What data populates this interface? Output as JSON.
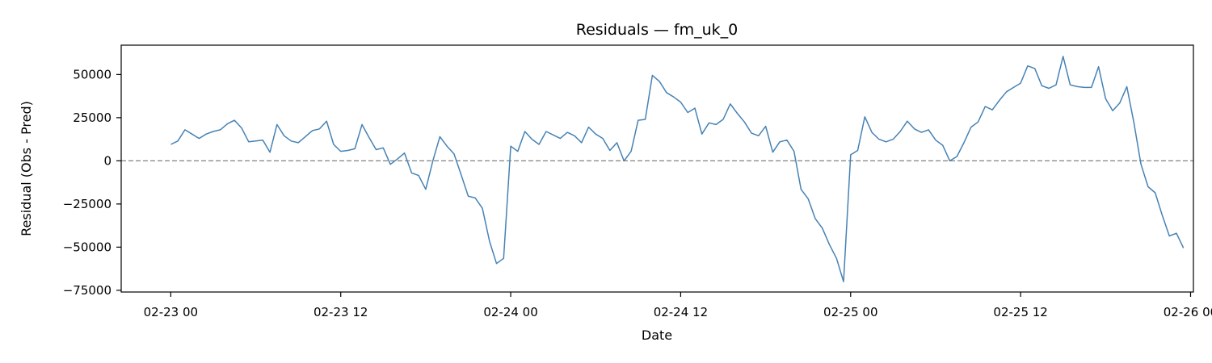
{
  "chart_data": {
    "type": "line",
    "title": "Residuals — fm_uk_0",
    "xlabel": "Date",
    "ylabel": "Residual (Obs - Pred)",
    "x_tick_labels": [
      "02-23 00",
      "02-23 12",
      "02-24 00",
      "02-24 12",
      "02-25 00",
      "02-25 12",
      "02-26 00"
    ],
    "x_ticks_hours": [
      0,
      12,
      24,
      36,
      48,
      60,
      72
    ],
    "y_ticks": [
      50000,
      25000,
      0,
      -25000,
      -50000,
      -75000
    ],
    "y_tick_labels": [
      "50000",
      "25000",
      "0",
      "−25000",
      "−50000",
      "−75000"
    ],
    "x_start": "2024-02-23 00:00",
    "x_range_hours": [
      -3.5,
      72.2
    ],
    "ylim": [
      -76000,
      67000
    ],
    "grid": false,
    "reference_line": {
      "y": 0,
      "style": "dashed",
      "color": "#808080"
    },
    "series": [
      {
        "color": "#4682b4",
        "x_hours": [
          0,
          0.5,
          1,
          1.5,
          2,
          2.5,
          3,
          3.5,
          4,
          4.5,
          5,
          5.5,
          6,
          6.5,
          7,
          7.5,
          8,
          8.5,
          9,
          9.5,
          10,
          10.5,
          11,
          11.5,
          12,
          12.5,
          13,
          13.5,
          14,
          14.5,
          15,
          15.5,
          16,
          16.5,
          17,
          17.5,
          18,
          18.5,
          19,
          19.5,
          20,
          20.5,
          21,
          21.5,
          22,
          22.5,
          23,
          23.5,
          24,
          24.5,
          25,
          25.5,
          26,
          26.5,
          27,
          27.5,
          28,
          28.5,
          29,
          29.5,
          30,
          30.5,
          31,
          31.5,
          32,
          32.5,
          33,
          33.5,
          34,
          34.5,
          35,
          35.5,
          36,
          36.5,
          37,
          37.5,
          38,
          38.5,
          39,
          39.5,
          40,
          40.5,
          41,
          41.5,
          42,
          42.5,
          43,
          43.5,
          44,
          44.5,
          45,
          45.5,
          46,
          46.5,
          47,
          47.5,
          48,
          48.5,
          49,
          49.5,
          50,
          50.5,
          51,
          51.5,
          52,
          52.5,
          53,
          53.5,
          54,
          54.5,
          55,
          55.5,
          56,
          56.5,
          57,
          57.5,
          58,
          58.5,
          59,
          59.5,
          60,
          60.5,
          61,
          61.5,
          62,
          62.5,
          63,
          63.5,
          64,
          64.5,
          65,
          65.5,
          66,
          66.5,
          67,
          67.5,
          68,
          68.5,
          69,
          69.5,
          70,
          70.5,
          71,
          71.5
        ],
        "values": [
          9500,
          11500,
          18000,
          15500,
          13000,
          15500,
          17000,
          18000,
          21500,
          23500,
          19000,
          11000,
          11500,
          12000,
          5000,
          21000,
          14500,
          11500,
          10500,
          14000,
          17500,
          18500,
          23000,
          9500,
          5500,
          6000,
          7000,
          21000,
          13500,
          6500,
          7500,
          -2000,
          1000,
          4500,
          -7000,
          -8500,
          -16500,
          0,
          14000,
          8500,
          4000,
          -8000,
          -20500,
          -21500,
          -27500,
          -46500,
          -59500,
          -56500,
          8500,
          5500,
          17000,
          12500,
          9500,
          17000,
          15000,
          13000,
          16500,
          14500,
          10500,
          19500,
          15500,
          13000,
          6000,
          10500,
          0,
          5500,
          23500,
          24000,
          49500,
          46000,
          39500,
          37000,
          34000,
          28000,
          30500,
          15500,
          22000,
          21000,
          24000,
          33000,
          27500,
          22500,
          16000,
          14500,
          20000,
          5000,
          11000,
          12000,
          5500,
          -16500,
          -22000,
          -33500,
          -39000,
          -48500,
          -56500,
          -70000,
          3500,
          6000,
          25500,
          16500,
          12500,
          11000,
          12500,
          17000,
          23000,
          18500,
          16500,
          18000,
          12000,
          9000,
          0,
          2500,
          10500,
          19500,
          22500,
          31500,
          29500,
          35000,
          40000,
          42500,
          45000,
          55000,
          53500,
          43500,
          42000,
          44000,
          60500,
          44000,
          43000,
          42500,
          42500,
          54500,
          36000,
          29000,
          33500,
          43000,
          22000,
          -2000,
          -15000,
          -18500,
          -31500,
          -43500,
          -42000,
          -50500
        ]
      }
    ]
  }
}
